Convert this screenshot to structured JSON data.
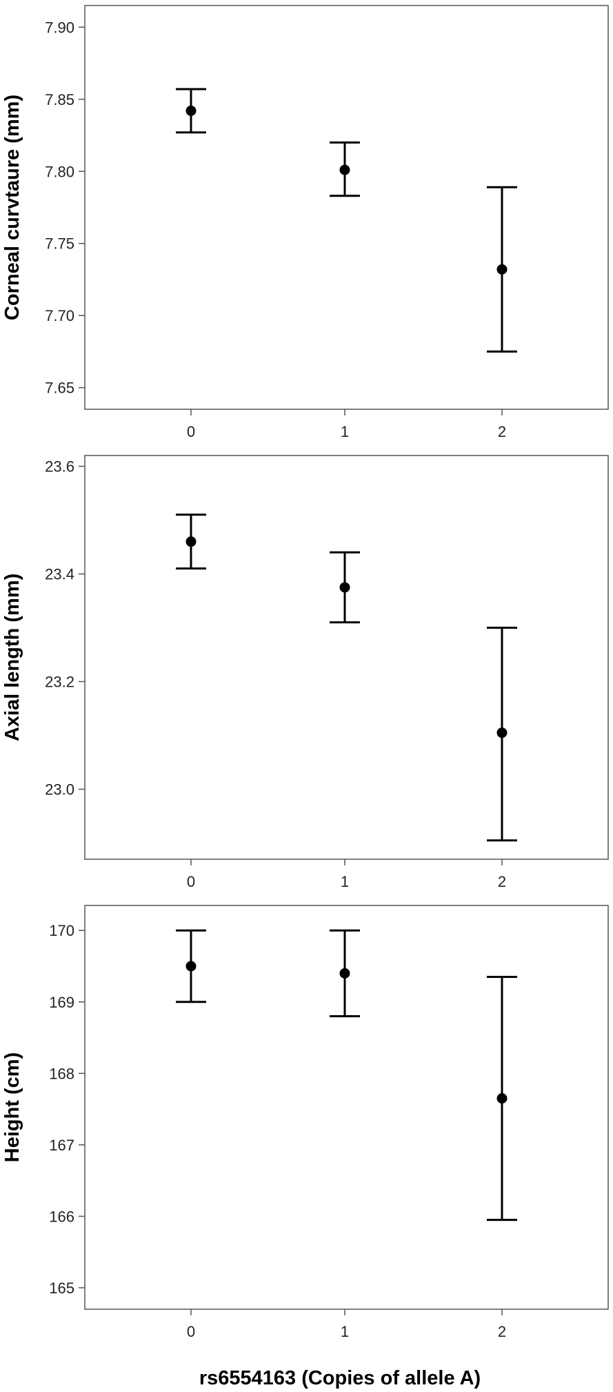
{
  "chart_data": [
    {
      "type": "scatter",
      "title": "",
      "xlabel": "",
      "ylabel": "Corneal curvtaure (mm)",
      "categories": [
        "0",
        "1",
        "2"
      ],
      "ylim": [
        7.635,
        7.915
      ],
      "yticks": [
        "7.65",
        "7.70",
        "7.75",
        "7.80",
        "7.85",
        "7.90"
      ],
      "grid": false,
      "series": [
        {
          "values": [
            7.842,
            7.801,
            7.732
          ],
          "err_low": [
            7.827,
            7.783,
            7.675
          ],
          "err_high": [
            7.857,
            7.82,
            7.789
          ]
        }
      ]
    },
    {
      "type": "scatter",
      "title": "",
      "xlabel": "",
      "ylabel": "Axial length (mm)",
      "categories": [
        "0",
        "1",
        "2"
      ],
      "ylim": [
        22.87,
        23.62
      ],
      "yticks": [
        "23.0",
        "23.2",
        "23.4",
        "23.6"
      ],
      "grid": false,
      "series": [
        {
          "values": [
            23.46,
            23.375,
            23.105
          ],
          "err_low": [
            23.41,
            23.31,
            22.905
          ],
          "err_high": [
            23.51,
            23.44,
            23.3
          ]
        }
      ]
    },
    {
      "type": "scatter",
      "title": "",
      "xlabel": "rs6554163 (Copies of allele A)",
      "ylabel": "Height (cm)",
      "categories": [
        "0",
        "1",
        "2"
      ],
      "ylim": [
        164.7,
        170.35
      ],
      "yticks": [
        "165",
        "166",
        "167",
        "168",
        "169",
        "170"
      ],
      "grid": false,
      "series": [
        {
          "values": [
            169.5,
            169.4,
            167.65
          ],
          "err_low": [
            169.0,
            168.8,
            165.95
          ],
          "err_high": [
            170.0,
            170.0,
            169.35
          ]
        }
      ]
    }
  ],
  "colors": {
    "marker": "#000000",
    "frame": "#555555",
    "background": "#ffffff"
  }
}
